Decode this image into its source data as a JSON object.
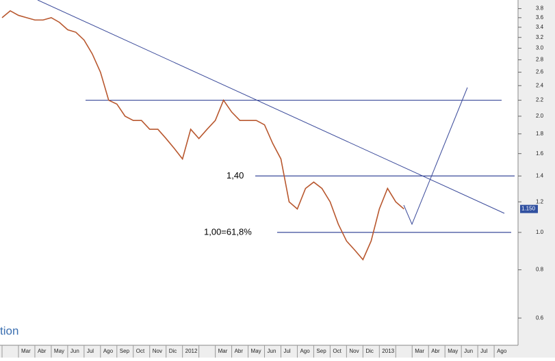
{
  "chart_data": {
    "type": "line",
    "categories": [
      null,
      null,
      "Mar",
      null,
      "Abr",
      null,
      "May",
      null,
      "Jun",
      null,
      "Jul",
      null,
      "Ago",
      null,
      "Sep",
      null,
      "Oct",
      null,
      "Nov",
      null,
      "Dic",
      null,
      "2012",
      null,
      null,
      null,
      "Mar",
      null,
      "Abr",
      null,
      "May",
      null,
      "Jun",
      null,
      "Jul",
      null,
      "Ago",
      null,
      "Sep",
      null,
      "Oct",
      null,
      "Nov",
      null,
      "Dic",
      null,
      "2013",
      null,
      null,
      null,
      "Mar",
      null,
      "Abr",
      null,
      "May",
      null,
      "Jun",
      null,
      "Jul",
      null,
      "Ago",
      null
    ],
    "series": [
      {
        "color": "#b8572e",
        "values": [
          3.6,
          3.75,
          3.65,
          3.6,
          3.55,
          3.55,
          3.6,
          3.5,
          3.35,
          3.3,
          3.15,
          2.9,
          2.6,
          2.2,
          2.15,
          2.0,
          1.95,
          1.95,
          1.85,
          1.85,
          1.75,
          1.65,
          1.55,
          1.85,
          1.75,
          1.85,
          1.95,
          2.2,
          2.05,
          1.95,
          1.95,
          1.95,
          1.9,
          1.7,
          1.55,
          1.2,
          1.15,
          1.3,
          1.35,
          1.3,
          1.2,
          1.05,
          0.95,
          0.9,
          0.85,
          0.95,
          1.15,
          1.3,
          1.2,
          1.15,
          null,
          null,
          null,
          null,
          null,
          null,
          null,
          null,
          null,
          null,
          null,
          null
        ]
      }
    ],
    "ylim": [
      0.51,
      4.0
    ],
    "log_y": true,
    "yticks": [
      0.6,
      0.8,
      {
        "value": 1,
        "label": "1.0"
      },
      1.2,
      1.4,
      1.6,
      1.8,
      {
        "value": 2,
        "label": "2.0"
      },
      2.2,
      2.4,
      2.6,
      2.8,
      {
        "value": 3,
        "label": "3.0"
      },
      3.2,
      3.4,
      3.6,
      3.8
    ],
    "hlines": [
      2.2,
      1.4,
      1
    ],
    "annotations": [
      {
        "value": 1.4,
        "label": "1,40"
      },
      {
        "value": 1,
        "label": "1,00=61,8%"
      }
    ],
    "last_price": {
      "value": 1.15,
      "label": "1.150"
    },
    "watermark": "tion"
  }
}
